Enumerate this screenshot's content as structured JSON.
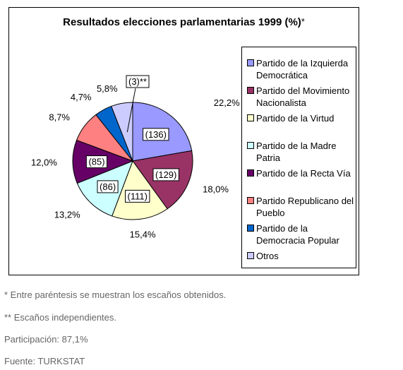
{
  "chart_data": {
    "type": "pie",
    "title": "Resultados elecciones parlamentarias 1999 (%)",
    "title_mark": "*",
    "slices": [
      {
        "label": "Partido de la Izquierda Democrática",
        "value": 22.2,
        "value_label": "22,2%",
        "seats_label": "(136)",
        "color": "#9999ff"
      },
      {
        "label": "Partido del Movimiento Nacionalista",
        "value": 18.0,
        "value_label": "18,0%",
        "seats_label": "(129)",
        "color": "#993366"
      },
      {
        "label": "Partido de la Virtud",
        "value": 15.4,
        "value_label": "15,4%",
        "seats_label": "(111)",
        "color": "#ffffcc"
      },
      {
        "label": "Partido de la Madre Patria",
        "value": 13.2,
        "value_label": "13,2%",
        "seats_label": "(86)",
        "color": "#ccffff"
      },
      {
        "label": "Partido de la Recta Vía",
        "value": 12.0,
        "value_label": "12,0%",
        "seats_label": "(85)",
        "color": "#660066"
      },
      {
        "label": "Partido Republicano del Pueblo",
        "value": 8.7,
        "value_label": "8,7%",
        "seats_label": "",
        "color": "#ff8080"
      },
      {
        "label": "Partido de la Democracia Popular",
        "value": 4.7,
        "value_label": "4,7%",
        "seats_label": "",
        "color": "#0066cc"
      },
      {
        "label": "Otros",
        "value": 5.8,
        "value_label": "5,8%",
        "seats_label": "(3)**",
        "color": "#ccccff"
      }
    ],
    "legend_position": "right"
  },
  "notes": {
    "seats": "* Entre paréntesis se muestran los escaños obtenidos.",
    "independents": "** Escaños independientes.",
    "turnout": "Participación: 87,1%",
    "source": "Fuente: TURKSTAT"
  }
}
